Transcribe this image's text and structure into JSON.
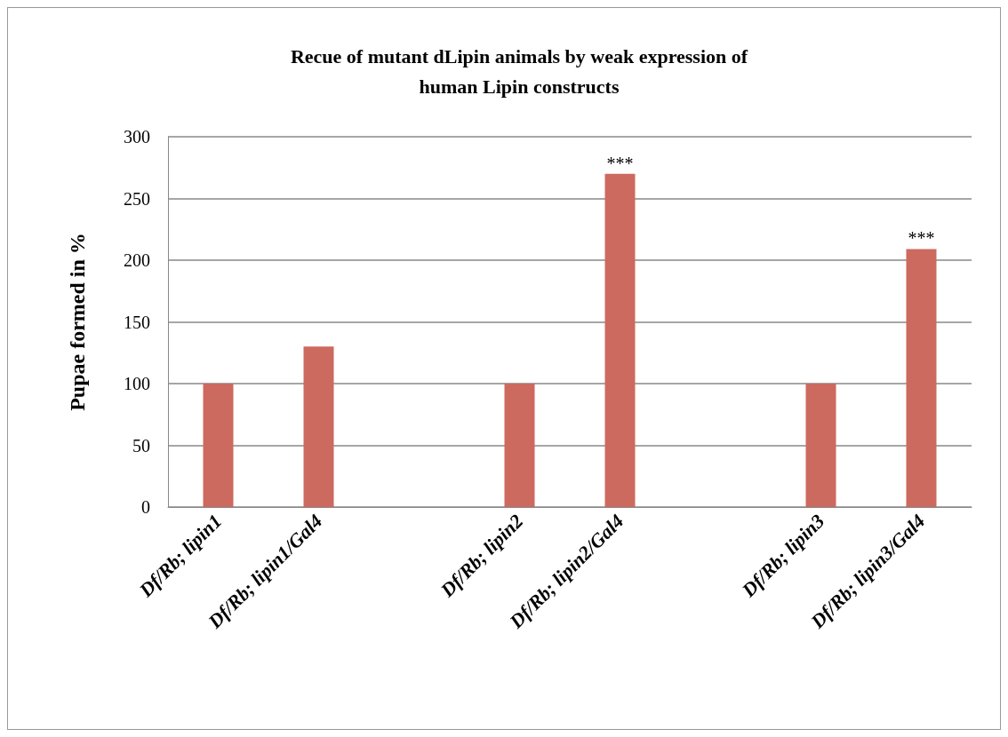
{
  "chart_data": {
    "type": "bar",
    "title": "Recue of mutant dLipin animals by weak expression of\nhuman Lipin constructs",
    "ylabel": "Pupae formed in %",
    "categories": [
      "Df/Rb; lipin1",
      "Df/Rb; lipin1/Gal4",
      null,
      "Df/Rb; lipin2",
      "Df/Rb; lipin2/Gal4",
      null,
      "Df/Rb; lipin3",
      "Df/Rb; lipin3/Gal4"
    ],
    "values": [
      100,
      130,
      null,
      100,
      270,
      null,
      100,
      209
    ],
    "color": "#cd6a5f",
    "ylim": [
      0,
      300
    ],
    "yticks": [
      0,
      50,
      100,
      150,
      200,
      250,
      300
    ],
    "grid": "y",
    "annotations": [
      {
        "text": "***",
        "x": "Df/Rb; lipin2/Gal4",
        "y": 270
      },
      {
        "text": "***",
        "x": "Df/Rb; lipin3/Gal4",
        "y": 209
      }
    ]
  }
}
